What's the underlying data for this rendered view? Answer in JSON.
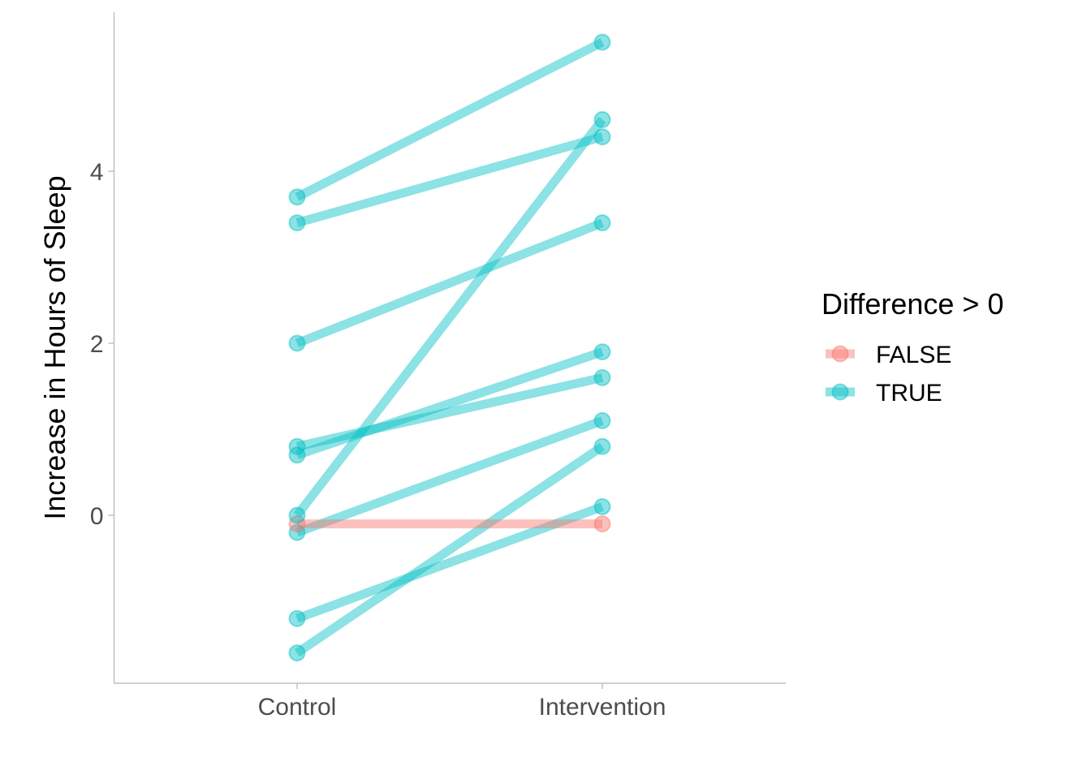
{
  "chart_data": {
    "type": "line",
    "categories": [
      "Control",
      "Intervention"
    ],
    "ylabel": "Increase in Hours of Sleep",
    "xlabel": "",
    "yticks": [
      0,
      2,
      4
    ],
    "ylim": [
      -1.95,
      5.85
    ],
    "grid": false,
    "legend": {
      "title": "Difference > 0",
      "placement": "right",
      "entries": [
        {
          "label": "FALSE",
          "color": "#F8766D"
        },
        {
          "label": "TRUE",
          "color": "#00BFC4"
        }
      ]
    },
    "series": [
      {
        "values": [
          0.7,
          1.9
        ],
        "difference_gt_0": "TRUE"
      },
      {
        "values": [
          -1.6,
          0.8
        ],
        "difference_gt_0": "TRUE"
      },
      {
        "values": [
          -0.2,
          1.1
        ],
        "difference_gt_0": "TRUE"
      },
      {
        "values": [
          -1.2,
          0.1
        ],
        "difference_gt_0": "TRUE"
      },
      {
        "values": [
          -0.1,
          -0.1
        ],
        "difference_gt_0": "FALSE"
      },
      {
        "values": [
          3.4,
          4.4
        ],
        "difference_gt_0": "TRUE"
      },
      {
        "values": [
          3.7,
          5.5
        ],
        "difference_gt_0": "TRUE"
      },
      {
        "values": [
          0.8,
          1.6
        ],
        "difference_gt_0": "TRUE"
      },
      {
        "values": [
          0.0,
          4.6
        ],
        "difference_gt_0": "TRUE"
      },
      {
        "values": [
          2.0,
          3.4
        ],
        "difference_gt_0": "TRUE"
      }
    ]
  }
}
